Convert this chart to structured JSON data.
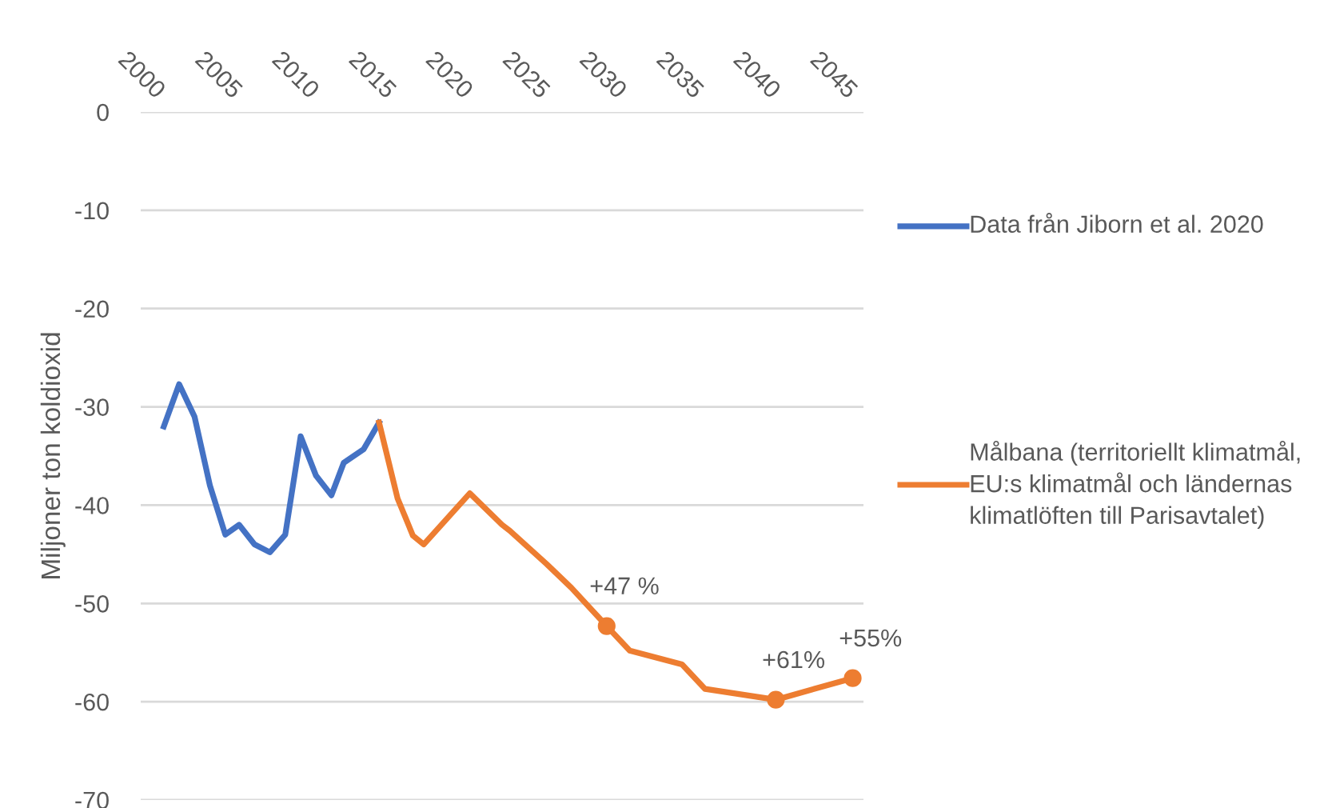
{
  "chart_data": {
    "type": "line",
    "ylabel": "Miljoner ton koldioxid",
    "xlim": [
      2000,
      2047
    ],
    "xticks": [
      2000,
      2005,
      2010,
      2015,
      2020,
      2025,
      2030,
      2035,
      2040,
      2045
    ],
    "ylim": [
      -70,
      0
    ],
    "yticks": [
      0,
      -10,
      -20,
      -30,
      -40,
      -50,
      -60,
      -70
    ],
    "grid": "y",
    "legend": "right",
    "series": [
      {
        "name": "Data från Jiborn et al. 2020",
        "color": "#4472c4",
        "x": [
          2001.5,
          2002.5,
          2003.5,
          2004.5,
          2005.5,
          2006.4,
          2007.4,
          2008.4,
          2009.4,
          2010.4,
          2011.4,
          2012.4,
          2013.2,
          2014.5,
          2015.5
        ],
        "values": [
          -32,
          -27.7,
          -31,
          -38,
          -43,
          -42,
          -44,
          -44.8,
          -43,
          -33,
          -37,
          -39,
          -35.7,
          -34.3,
          -31.6
        ]
      },
      {
        "name": "Målbana (territoriellt klimatmål, EU:s klimatmål och ländernas klimatlöften till Parisavtalet)",
        "color": "#ed7d31",
        "x": [
          2015.5,
          2016.7,
          2017.7,
          2018.4,
          2021.4,
          2023.5,
          2024,
          2026.4,
          2028,
          2030.3,
          2031.8,
          2035.2,
          2036.7,
          2041.3,
          2046.3
        ],
        "values": [
          -31.6,
          -39.3,
          -43.1,
          -44,
          -38.8,
          -42,
          -42.6,
          -46,
          -48.4,
          -52.3,
          -54.8,
          -56.2,
          -58.7,
          -59.8,
          -57.6
        ]
      },
      {
        "type": "scatter",
        "color": "#ed7d31",
        "marker": "circle",
        "x": [
          2030.3,
          2041.3,
          2046.3
        ],
        "values": [
          -52.3,
          -59.8,
          -57.6
        ]
      }
    ],
    "annotations": [
      {
        "text": "+47 %",
        "x": 2030.3,
        "y": -52.3
      },
      {
        "text": "+61%",
        "x": 2041.3,
        "y": -59.8
      },
      {
        "text": "+55%",
        "x": 2046.3,
        "y": -57.6
      }
    ]
  }
}
